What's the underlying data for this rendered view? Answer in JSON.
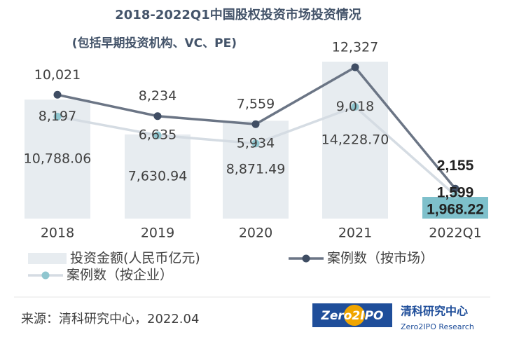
{
  "chart_data": {
    "type": "bar-line",
    "title": "2018-2022Q1中国股权投资市场投资情况",
    "subtitle": "(包括早期投资机构、VC、PE)",
    "categories": [
      "2018",
      "2019",
      "2020",
      "2021",
      "2022Q1"
    ],
    "series": [
      {
        "name": "投资金额(人民币亿元)",
        "type": "bar",
        "color": "#e7ecf0",
        "highlight_color": "#7ec0cb",
        "values": [
          10788.06,
          7630.94,
          8871.49,
          14228.7,
          1968.22
        ],
        "value_labels": [
          "10,788.06",
          "7,630.94",
          "8,871.49",
          "14,228.70",
          "1,968.22"
        ]
      },
      {
        "name": "案例数（按市场）",
        "type": "line",
        "axis": "y2",
        "color": "#6b7585",
        "marker_color": "#3f4d63",
        "values": [
          10021,
          8234,
          7559,
          12327,
          2155
        ],
        "value_labels": [
          "10,021",
          "8,234",
          "7,559",
          "12,327",
          "2,155"
        ]
      },
      {
        "name": "案例数（按企业）",
        "type": "line",
        "axis": "y2",
        "color": "#d5dce3",
        "marker_color": "#8fc6cf",
        "values": [
          8197,
          6635,
          5934,
          9018,
          1599
        ],
        "value_labels": [
          "8,197",
          "6,635",
          "5,934",
          "9,018",
          "1,599"
        ]
      }
    ],
    "source": "来源：清科研究中心，2022.04",
    "logo_text": "Zero2IPO",
    "brand_name": "清科研究中心",
    "brand_sub": "Zero2IPO Research"
  }
}
